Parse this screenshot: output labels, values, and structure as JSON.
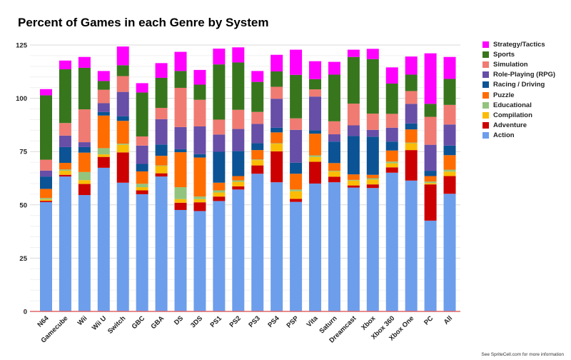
{
  "chart_data": {
    "type": "bar",
    "stacked": true,
    "title": "Percent of Games in each Genre by System",
    "xlabel": "",
    "ylabel": "",
    "ylim": [
      0,
      125
    ],
    "yticks": [
      0,
      25,
      50,
      75,
      100,
      125
    ],
    "grid": true,
    "legend_placement": "right",
    "categories": [
      "N64",
      "Gamecube",
      "Wii",
      "Wii U",
      "Switch",
      "GBC",
      "GBA",
      "DS",
      "3DS",
      "PS1",
      "PS2",
      "PS3",
      "PS4",
      "PSP",
      "Vita",
      "Saturn",
      "Dreamcast",
      "Xbox",
      "Xbox 360",
      "Xbox One",
      "PC",
      "All"
    ],
    "series": [
      {
        "name": "Action",
        "color": "#6d9eeb",
        "values": [
          51.3,
          63.3,
          54.6,
          67.4,
          60.4,
          55,
          63.3,
          47.6,
          47.1,
          51.8,
          57.2,
          64.6,
          60.6,
          51.4,
          60,
          60.6,
          58.1,
          57.9,
          65.1,
          61.4,
          42.6,
          55.2
        ]
      },
      {
        "name": "Adventure",
        "color": "#cc0000",
        "values": [
          0.6,
          0.8,
          5.2,
          5.1,
          14.2,
          1.8,
          1.5,
          3.4,
          4.1,
          2.1,
          1.5,
          3.9,
          14.5,
          1.4,
          10.2,
          2.6,
          1,
          1.7,
          2.5,
          14.3,
          17,
          8.3
        ]
      },
      {
        "name": "Compilation",
        "color": "#fbbc04",
        "values": [
          0.6,
          1.9,
          1.8,
          1.2,
          3.6,
          1.5,
          3.4,
          1.7,
          1.5,
          1.9,
          2.1,
          2.5,
          3.6,
          3.6,
          2.3,
          2.5,
          2.3,
          2.3,
          1.9,
          3.2,
          0.6,
          2.1
        ]
      },
      {
        "name": "Educational",
        "color": "#93c47d",
        "values": [
          0.7,
          0.6,
          3.8,
          2.9,
          0.5,
          1.6,
          0.3,
          5.6,
          1.2,
          1,
          0.7,
          0.3,
          0.2,
          0.8,
          0.7,
          0.3,
          0.3,
          0.6,
          0.8,
          0.3,
          0.7,
          0.9
        ]
      },
      {
        "name": "Puzzle",
        "color": "#ff6d01",
        "values": [
          4.3,
          3.1,
          9.1,
          15.3,
          10.7,
          5.8,
          4.5,
          16.4,
          18.3,
          3.6,
          2,
          4.4,
          5.1,
          7.4,
          10.2,
          3.6,
          2.6,
          1.6,
          5.2,
          6.2,
          2.6,
          6.8
        ]
      },
      {
        "name": "Racing / Driving",
        "color": "#0b5394",
        "values": [
          5.8,
          7.4,
          2.6,
          1.7,
          2.2,
          3.5,
          5.3,
          1.4,
          1.6,
          14.5,
          11.7,
          3.2,
          2.2,
          5.2,
          1.6,
          10.1,
          18,
          17.9,
          4.2,
          2.8,
          2.5,
          4.5
        ]
      },
      {
        "name": "Role-Playing (RPG)",
        "color": "#674ea7",
        "values": [
          2.8,
          5.4,
          2.3,
          4.1,
          11.4,
          8.6,
          11.9,
          10.4,
          13,
          8.1,
          10.4,
          9.1,
          13.6,
          15.4,
          15.8,
          3.4,
          5,
          3.2,
          6.5,
          9.2,
          12.2,
          9.9
        ]
      },
      {
        "name": "Simulation",
        "color": "#f07b72",
        "values": [
          5.1,
          5.9,
          15.4,
          6.3,
          7.4,
          4.3,
          5.3,
          18.4,
          12.5,
          7,
          9,
          5.6,
          5.6,
          5.4,
          3.4,
          6.1,
          10.2,
          7.6,
          6.5,
          6,
          13.1,
          9.2
        ]
      },
      {
        "name": "Sports",
        "color": "#38761d",
        "values": [
          30.2,
          25.2,
          19.5,
          4.1,
          5.1,
          20.6,
          14.1,
          7.9,
          7.1,
          25.9,
          22.2,
          14.1,
          7.2,
          20.4,
          4.8,
          21.9,
          21.9,
          25.6,
          14.2,
          7.7,
          6.1,
          12.2
        ]
      },
      {
        "name": "Strategy/Tactics",
        "color": "#ff00ff",
        "values": [
          2.9,
          4.1,
          5.1,
          4.7,
          8.8,
          4.4,
          6.9,
          9,
          6.9,
          7.4,
          7.1,
          5.1,
          7.8,
          11.8,
          8.4,
          6,
          3.4,
          4.8,
          7.6,
          8.5,
          23.7,
          10.3
        ]
      }
    ]
  },
  "footer": "See SpriteCell.com for more information"
}
